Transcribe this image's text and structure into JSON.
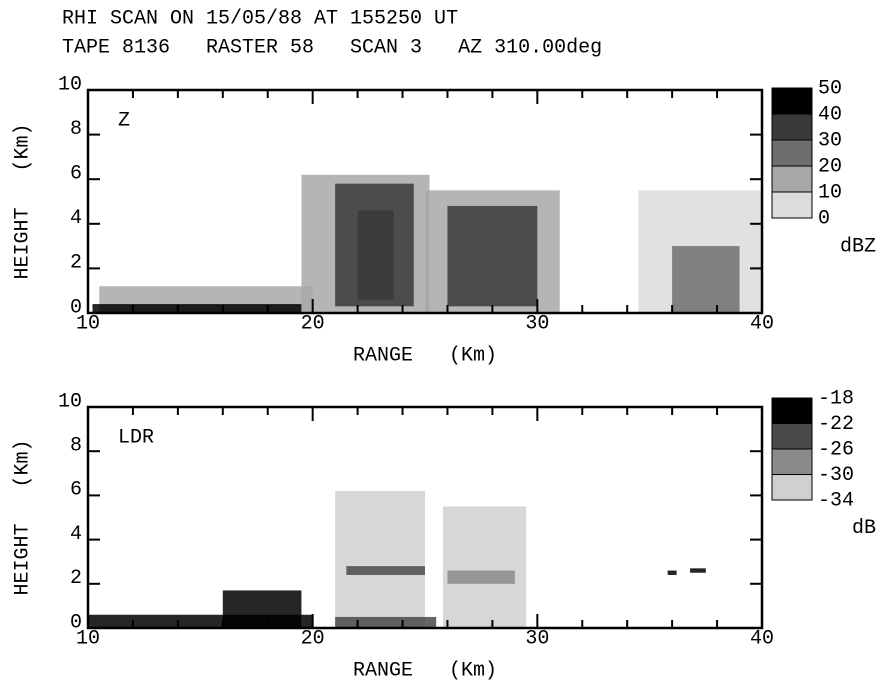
{
  "title": "RHI SCAN ON 15/05/88 AT 155250 UT",
  "subtitle": "TAPE 8136   RASTER 58   SCAN 3   AZ 310.00deg",
  "chart_data": [
    {
      "type": "rhi",
      "label": "Z",
      "xlabel": "RANGE   (Km)",
      "ylabel": "HEIGHT   (Km)",
      "xlim": [
        10,
        40
      ],
      "xticks": [
        10,
        20,
        30,
        40
      ],
      "xminorticks": [
        12,
        14,
        16,
        18,
        22,
        24,
        26,
        28,
        32,
        34,
        36,
        38
      ],
      "ylim": [
        0,
        10
      ],
      "yticks": [
        0,
        2,
        4,
        6,
        8,
        10
      ],
      "colorbar": {
        "ticks": [
          50,
          40,
          30,
          20,
          10,
          0
        ],
        "unit": "dBZ",
        "colors": [
          "#000000",
          "#3a3a3a",
          "#6e6e6e",
          "#a8a8a8",
          "#dcdcdc"
        ]
      },
      "cells": [
        {
          "range": [
            10.5,
            20
          ],
          "height": [
            0,
            1.2
          ],
          "value": 12
        },
        {
          "range": [
            10.2,
            19.5
          ],
          "height": [
            0,
            0.4
          ],
          "value": 42
        },
        {
          "range": [
            19.5,
            25.2
          ],
          "height": [
            0,
            6.2
          ],
          "value": 15
        },
        {
          "range": [
            21,
            24.5
          ],
          "height": [
            0.3,
            5.8
          ],
          "value": 35
        },
        {
          "range": [
            22,
            23.6
          ],
          "height": [
            0.6,
            4.6
          ],
          "value": 38
        },
        {
          "range": [
            25,
            31
          ],
          "height": [
            0,
            5.5
          ],
          "value": 15
        },
        {
          "range": [
            26,
            30
          ],
          "height": [
            0.3,
            4.8
          ],
          "value": 32
        },
        {
          "range": [
            34.5,
            40
          ],
          "height": [
            0,
            5.5
          ],
          "value": 8
        },
        {
          "range": [
            36,
            39
          ],
          "height": [
            0,
            3
          ],
          "value": 22
        }
      ]
    },
    {
      "type": "rhi",
      "label": "LDR",
      "xlabel": "RANGE   (Km)",
      "ylabel": "HEIGHT   (Km)",
      "xlim": [
        10,
        40
      ],
      "xticks": [
        10,
        20,
        30,
        40
      ],
      "xminorticks": [
        12,
        14,
        16,
        18,
        22,
        24,
        26,
        28,
        32,
        34,
        36,
        38
      ],
      "ylim": [
        0,
        10
      ],
      "yticks": [
        0,
        2,
        4,
        6,
        8,
        10
      ],
      "colorbar": {
        "ticks": [
          -18,
          -22,
          -26,
          -30,
          -34
        ],
        "unit": "dB",
        "colors": [
          "#000000",
          "#4a4a4a",
          "#8a8a8a",
          "#d0d0d0"
        ]
      },
      "cells": [
        {
          "range": [
            10,
            20
          ],
          "height": [
            0,
            0.6
          ],
          "value": -20
        },
        {
          "range": [
            16,
            19.5
          ],
          "height": [
            0,
            1.7
          ],
          "value": -20
        },
        {
          "range": [
            21,
            25
          ],
          "height": [
            0,
            6.2
          ],
          "value": -33
        },
        {
          "range": [
            21.5,
            25
          ],
          "height": [
            2.4,
            2.8
          ],
          "value": -24
        },
        {
          "range": [
            21,
            25.5
          ],
          "height": [
            0,
            0.5
          ],
          "value": -24
        },
        {
          "range": [
            25.8,
            29.5
          ],
          "height": [
            0,
            5.5
          ],
          "value": -33
        },
        {
          "range": [
            26,
            29
          ],
          "height": [
            2,
            2.6
          ],
          "value": -27
        },
        {
          "range": [
            35.8,
            36.2
          ],
          "height": [
            2.4,
            2.6
          ],
          "value": -19
        },
        {
          "range": [
            36.8,
            37.5
          ],
          "height": [
            2.5,
            2.7
          ],
          "value": -19
        }
      ]
    }
  ]
}
